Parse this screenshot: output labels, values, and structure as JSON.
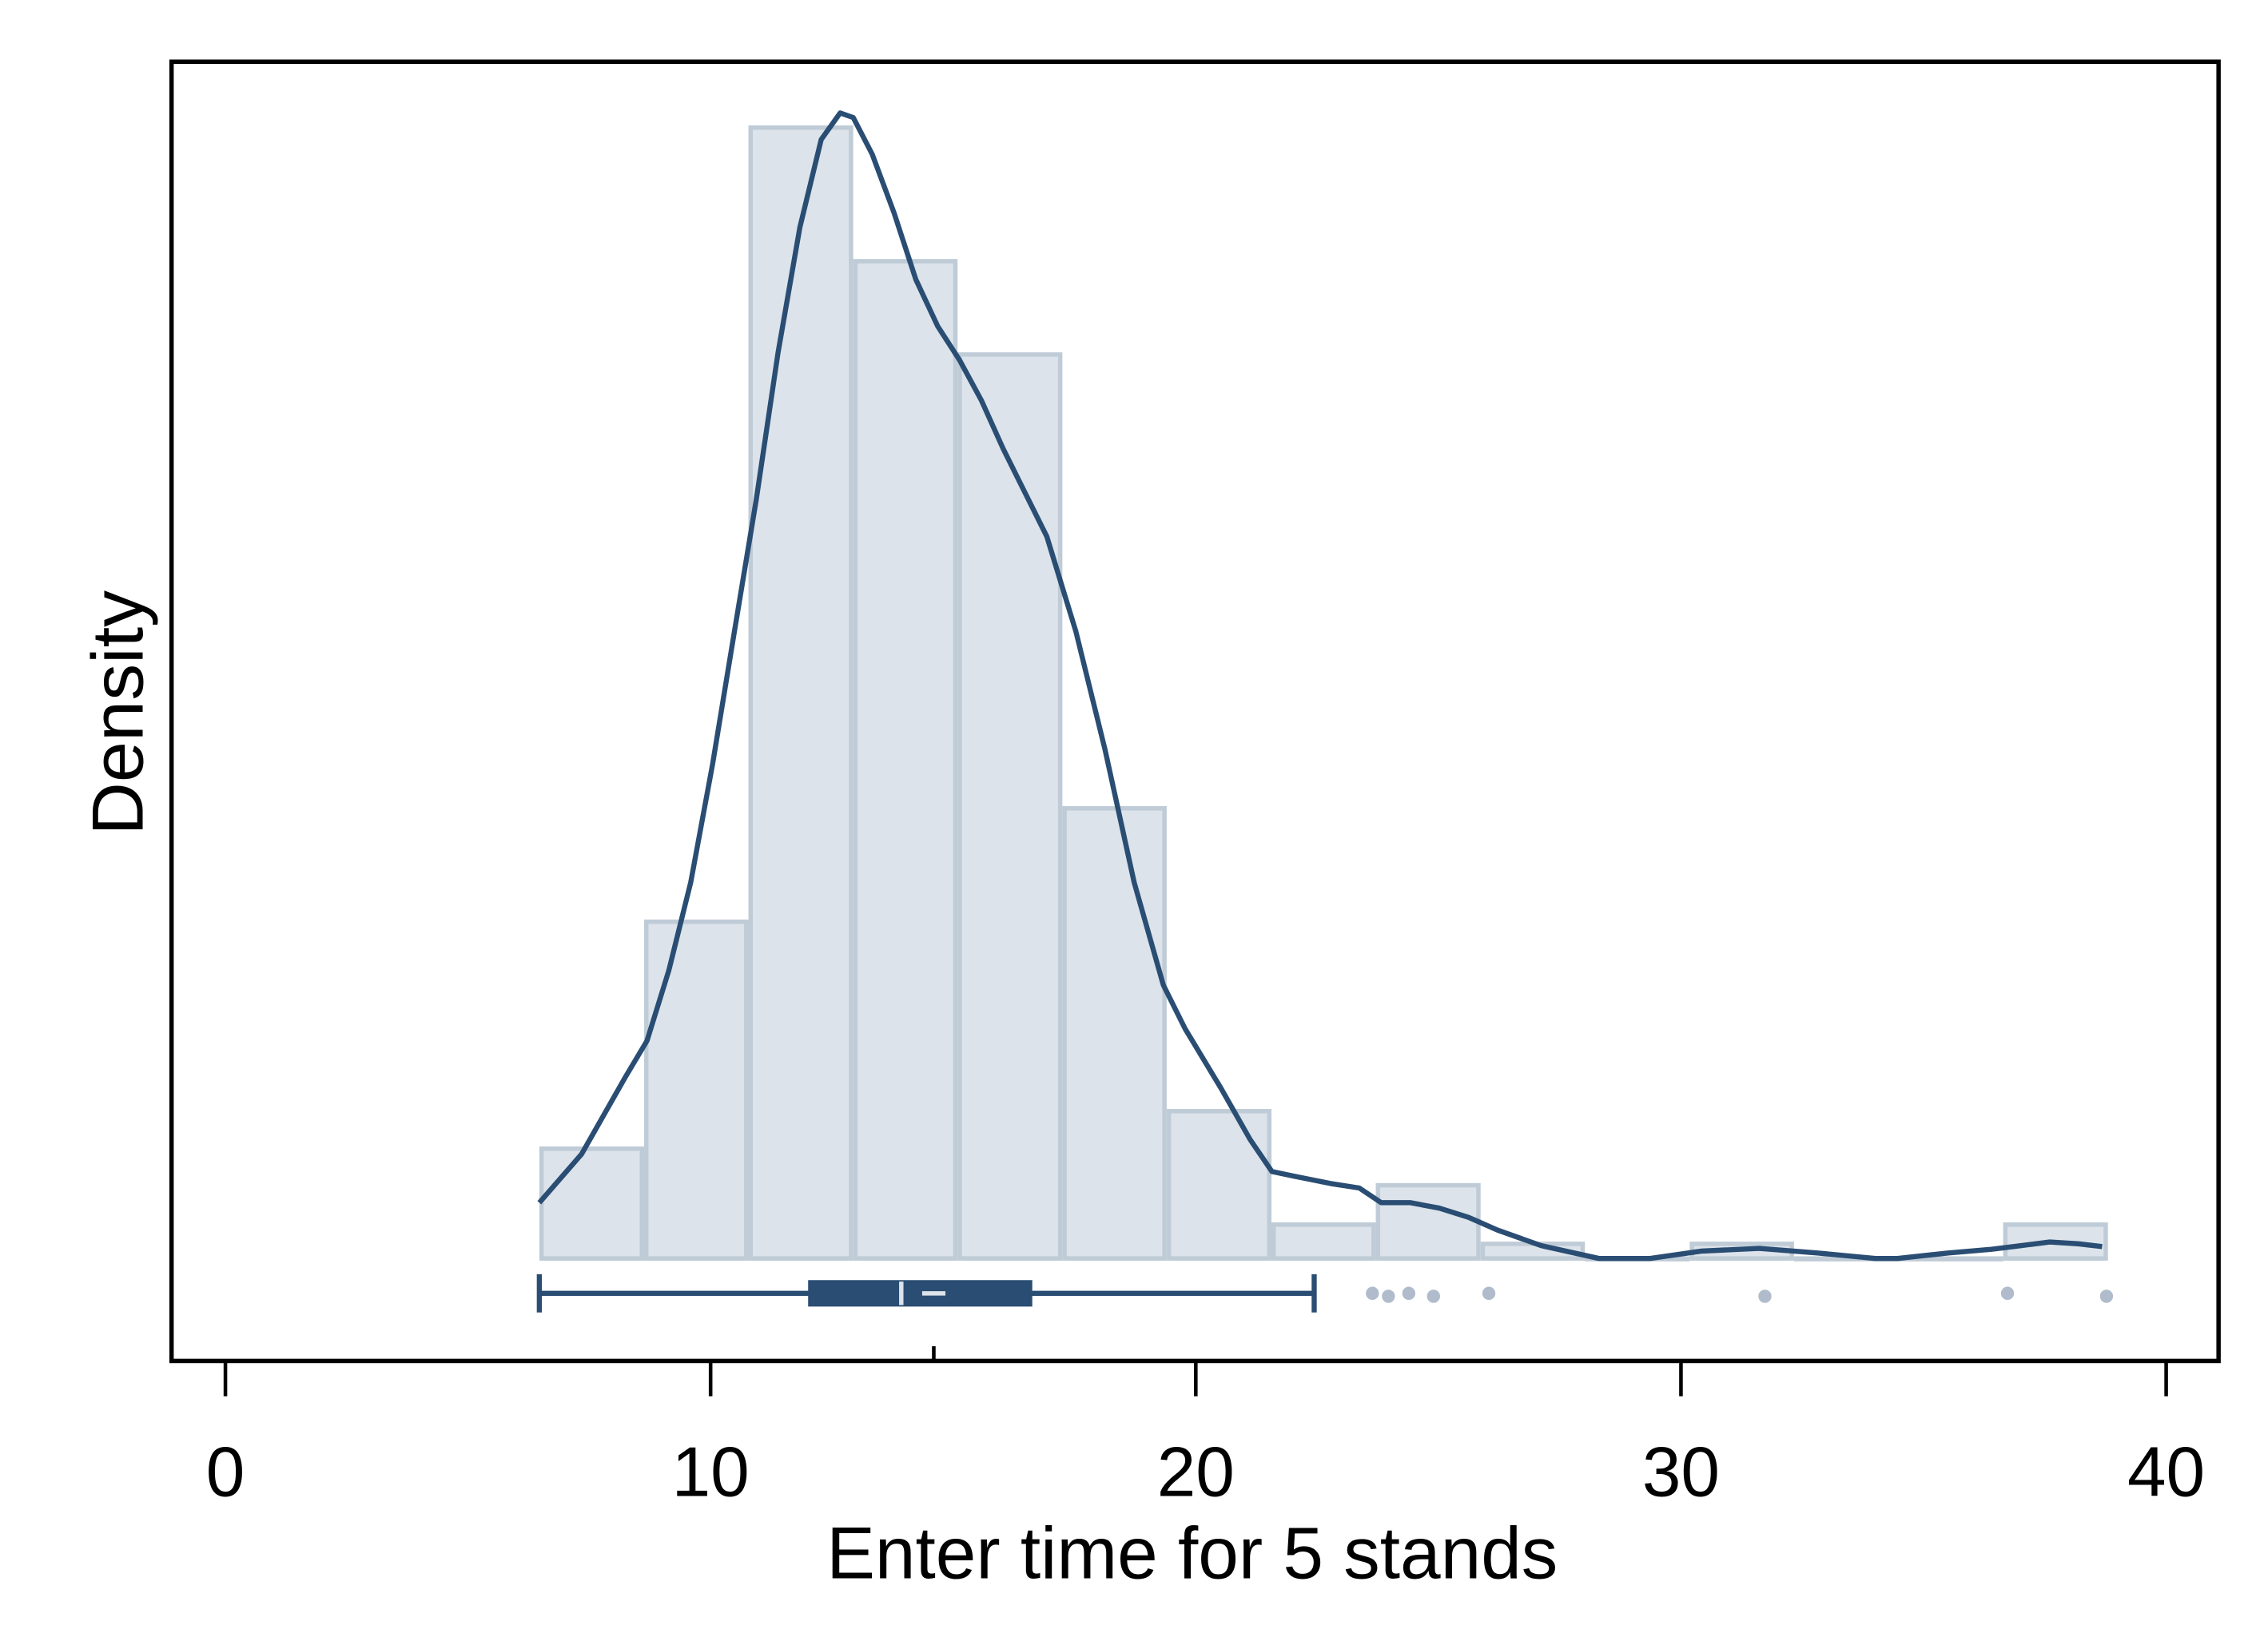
{
  "chart_data": {
    "type": "histogram",
    "xlabel": "Enter time for 5 stands",
    "ylabel": "Density",
    "bins": [
      6.47,
      8.63,
      10.78,
      12.94,
      15.09,
      17.25,
      19.4,
      21.56,
      23.71,
      25.87,
      28.02,
      30.18,
      32.33,
      34.49,
      36.64,
      38.8
    ],
    "values": [
      0.012,
      0.0368,
      0.1236,
      0.109,
      0.0988,
      0.0492,
      0.0161,
      0.0037,
      0.008,
      0.0016,
      0,
      0.0016,
      0,
      0,
      0.0037
    ],
    "bar_color": "#dce3ea",
    "bar_edge_color": "#bfcbd6",
    "density": {
      "color": "#2a4d73",
      "x": [
        6.47,
        7.34,
        8.24,
        8.69,
        9.14,
        9.59,
        10.04,
        10.49,
        10.94,
        11.39,
        11.84,
        12.28,
        12.67,
        12.94,
        13.33,
        13.78,
        14.23,
        14.68,
        15.13,
        15.58,
        16.03,
        16.48,
        16.93,
        17.53,
        18.13,
        18.73,
        19.33,
        19.78,
        20.52,
        21.12,
        21.57,
        22.02,
        22.77,
        23.37,
        23.82,
        24.42,
        25.02,
        25.62,
        26.22,
        27.12,
        28.31,
        29.36,
        30.41,
        31.61,
        32.81,
        34.01,
        34.46,
        35.51,
        36.4,
        37.0,
        37.6,
        38.2,
        38.68
      ],
      "y": [
        0.0061,
        0.0114,
        0.0198,
        0.0238,
        0.0315,
        0.0411,
        0.054,
        0.0685,
        0.0829,
        0.099,
        0.1127,
        0.1223,
        0.1252,
        0.1247,
        0.1207,
        0.1143,
        0.107,
        0.1019,
        0.0982,
        0.0938,
        0.0885,
        0.0837,
        0.0789,
        0.0685,
        0.0556,
        0.0411,
        0.0299,
        0.0251,
        0.0186,
        0.013,
        0.0095,
        0.009,
        0.0082,
        0.0077,
        0.0061,
        0.0061,
        0.0055,
        0.0045,
        0.0031,
        0.0014,
        0,
        0,
        0.0008,
        0.0011,
        0.0006,
        0,
        0,
        0.0006,
        0.001,
        0.0014,
        0.0018,
        0.0016,
        0.0013
      ]
    },
    "box": {
      "color": "#2a4d73",
      "outlier_color": "#b0bccb",
      "whisker_low": 6.47,
      "q1": 12.04,
      "median": 13.93,
      "mean": 14.6,
      "q3": 16.6,
      "whisker_high": 22.44,
      "outliers": [
        23.64,
        23.97,
        24.39,
        24.9,
        26.04,
        31.73,
        36.73,
        38.77
      ]
    },
    "xlim": [
      -1.11,
      41.08
    ],
    "xticks": [
      0,
      10,
      20,
      30,
      40
    ],
    "ylim": [
      -0.0112,
      0.1308
    ]
  }
}
